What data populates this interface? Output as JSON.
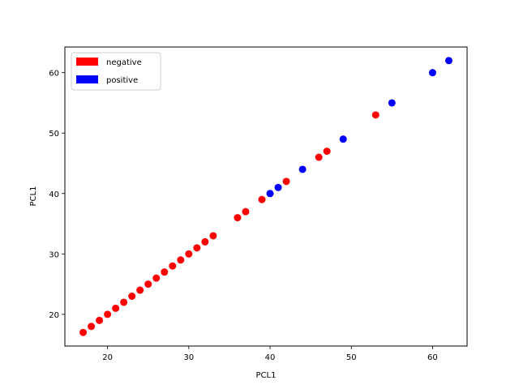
{
  "chart_data": {
    "type": "scatter",
    "xlabel": "PCL1",
    "ylabel": "PCL1",
    "xlim": [
      14.75,
      64.25
    ],
    "ylim": [
      14.75,
      64.25
    ],
    "xticks": [
      20,
      30,
      40,
      50,
      60
    ],
    "yticks": [
      20,
      30,
      40,
      50,
      60
    ],
    "grid": false,
    "legend_position": "top-left",
    "series": [
      {
        "name": "negative",
        "color": "#ff0000",
        "x": [
          17,
          18,
          19,
          20,
          21,
          22,
          23,
          24,
          25,
          26,
          27,
          28,
          29,
          30,
          31,
          32,
          33,
          36,
          37,
          39,
          42,
          46,
          47,
          53
        ],
        "y": [
          17,
          18,
          19,
          20,
          21,
          22,
          23,
          24,
          25,
          26,
          27,
          28,
          29,
          30,
          31,
          32,
          33,
          36,
          37,
          39,
          42,
          46,
          47,
          53
        ]
      },
      {
        "name": "positive",
        "color": "#0000ff",
        "x": [
          40,
          41,
          44,
          49,
          55,
          60,
          62
        ],
        "y": [
          40,
          41,
          44,
          49,
          55,
          60,
          62
        ]
      }
    ]
  }
}
